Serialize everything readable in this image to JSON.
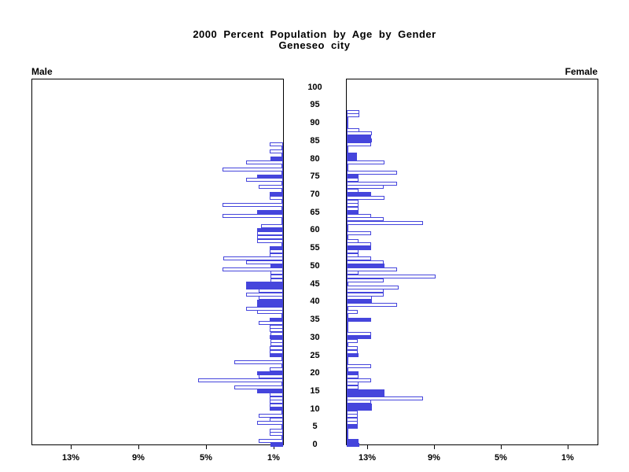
{
  "title": {
    "line1": "2000 Percent Population by Age by Gender",
    "line2": "Geneseo city"
  },
  "panel_labels": {
    "left": "Male",
    "right": "Female"
  },
  "axis_labels": {
    "left_ticks": [
      "13%",
      "9%",
      "5%",
      "1%"
    ],
    "right_ticks": [
      "1%",
      "5%",
      "9%",
      "13%"
    ],
    "age_ticks": [
      "0",
      "5",
      "10",
      "15",
      "20",
      "25",
      "30",
      "35",
      "40",
      "45",
      "50",
      "55",
      "60",
      "65",
      "70",
      "75",
      "80",
      "85",
      "90",
      "95",
      "100"
    ]
  },
  "colors": {
    "bar_outline": "#4545dc",
    "bar_fill_solid": "#4545dc",
    "bar_fill_hollow": "#ffffff",
    "axis": "#000000",
    "text": "#000000",
    "background": "#ffffff"
  },
  "chart_data": {
    "type": "bar",
    "subtype": "population_pyramid",
    "title": "2000 Percent Population by Age by Gender",
    "subtitle": "Geneseo city",
    "x_unit": "percent",
    "x_tick_values": [
      13,
      9,
      5,
      1
    ],
    "x_max_percent": 15,
    "age_min": 0,
    "age_max": 100,
    "age_tick_interval": 5,
    "grid": false,
    "legend": "none",
    "solid_bar_rule": "bars at ages divisible by 5 are filled solid; other bars hollow outline",
    "extra_solid_ages": {
      "Male": [
        39,
        44
      ],
      "Female": [
        1,
        11,
        14,
        81,
        86
      ]
    },
    "series": [
      {
        "name": "Male",
        "side": "left",
        "values_pct_by_age": [
          0.75,
          1.45,
          0,
          0.8,
          0.8,
          0,
          1.55,
          0.8,
          1.45,
          0,
          0.8,
          0.8,
          0.8,
          0.8,
          0.8,
          1.55,
          2.9,
          0,
          5.05,
          1.45,
          1.55,
          0.8,
          0,
          2.9,
          0,
          0.8,
          0.8,
          0.8,
          0.75,
          0.75,
          0.8,
          0.75,
          0.8,
          0.8,
          1.45,
          0.8,
          0,
          1.55,
          2.2,
          1.55,
          1.55,
          1.45,
          2.2,
          1.45,
          2.2,
          2.2,
          0.75,
          0.75,
          0.75,
          3.6,
          0.75,
          2.2,
          3.55,
          0.8,
          0.8,
          0.8,
          0,
          1.55,
          1.55,
          1.55,
          1.55,
          1.3,
          0,
          0,
          3.6,
          1.55,
          0,
          3.6,
          0,
          0.8,
          0.8,
          0,
          1.45,
          0,
          2.2,
          1.55,
          0,
          3.6,
          0,
          2.2,
          0.75,
          0,
          0.8,
          0,
          0.8,
          0,
          0,
          0,
          0,
          0,
          0,
          0,
          0,
          0,
          0,
          0,
          0,
          0,
          0,
          0,
          0
        ]
      },
      {
        "name": "Female",
        "side": "right",
        "values_pct_by_age": [
          0.73,
          0.7,
          0,
          0,
          0,
          0.65,
          0.65,
          0.65,
          0.65,
          0.65,
          1.5,
          1.5,
          1.45,
          4.55,
          2.25,
          2.25,
          0.7,
          0.7,
          1.45,
          0.7,
          0.7,
          0,
          1.45,
          0,
          0,
          0.7,
          0.65,
          0.65,
          0,
          0.65,
          1.45,
          1.45,
          0,
          0,
          0,
          1.45,
          0,
          0.65,
          0,
          3.0,
          1.5,
          1.5,
          2.2,
          2.2,
          3.1,
          0,
          2.2,
          5.3,
          0.7,
          2.98,
          2.25,
          2.2,
          1.45,
          0.7,
          0.7,
          1.45,
          1.45,
          0.7,
          0,
          1.45,
          0,
          0,
          4.55,
          2.2,
          1.43,
          0.7,
          0.7,
          0.7,
          0.7,
          2.26,
          1.46,
          0.7,
          2.2,
          2.98,
          0.7,
          0.7,
          2.98,
          0,
          0,
          2.26,
          0.6,
          0.6,
          0,
          0,
          1.45,
          1.5,
          1.45,
          1.48,
          0.73,
          0,
          0,
          0,
          0.73,
          0.73,
          0,
          0,
          0,
          0,
          0,
          0,
          0
        ]
      }
    ]
  }
}
